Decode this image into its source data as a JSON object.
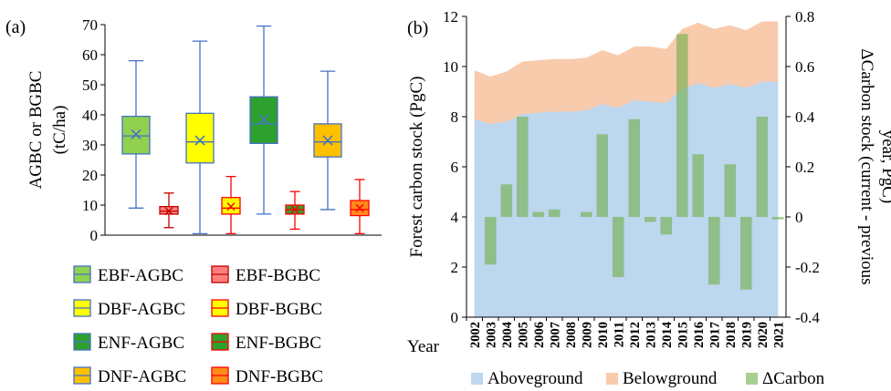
{
  "chart_data": [
    {
      "type": "box",
      "panel_label": "(a)",
      "ylabel": [
        "AGBC or BGBC",
        "(tC/ha)"
      ],
      "ylim": [
        0,
        70
      ],
      "yticks": [
        0,
        10,
        20,
        30,
        40,
        50,
        60,
        70
      ],
      "grid": false,
      "legend_position": "bottom",
      "series": [
        {
          "name": "EBF-AGBC",
          "min": 9,
          "q1": 27,
          "median": 33,
          "mean": 33.5,
          "q3": 39.5,
          "max": 58,
          "fill": "#92D050",
          "stroke": "#4472C4"
        },
        {
          "name": "EBF-BGBC",
          "min": 2.5,
          "q1": 7,
          "median": 8,
          "mean": 8,
          "q3": 9.5,
          "max": 14,
          "fill": "#FF7F7F",
          "stroke": "#C00000"
        },
        {
          "name": "DBF-AGBC",
          "min": 0.5,
          "q1": 24,
          "median": 31,
          "mean": 31.5,
          "q3": 40.5,
          "max": 64.5,
          "fill": "#FFFF00",
          "stroke": "#4472C4"
        },
        {
          "name": "DBF-BGBC",
          "min": 0.5,
          "q1": 7,
          "median": 9,
          "mean": 9.5,
          "q3": 12.5,
          "max": 19.5,
          "fill": "#FFFF00",
          "stroke": "#FF0000"
        },
        {
          "name": "ENF-AGBC",
          "min": 7,
          "q1": 30.5,
          "median": 37,
          "mean": 38.5,
          "q3": 46,
          "max": 69.5,
          "fill": "#2EA02E",
          "stroke": "#4472C4"
        },
        {
          "name": "ENF-BGBC",
          "min": 2,
          "q1": 7,
          "median": 8.5,
          "mean": 8.5,
          "q3": 10,
          "max": 14.5,
          "fill": "#2EA02E",
          "stroke": "#FF0000"
        },
        {
          "name": "DNF-AGBC",
          "min": 8.5,
          "q1": 26,
          "median": 31,
          "mean": 31.5,
          "q3": 37,
          "max": 54.5,
          "fill": "#FFC000",
          "stroke": "#4472C4"
        },
        {
          "name": "DNF-BGBC",
          "min": 0.5,
          "q1": 6.5,
          "median": 8.5,
          "mean": 9,
          "q3": 11.5,
          "max": 18.5,
          "fill": "#FF8C1A",
          "stroke": "#FF0000"
        }
      ],
      "whisker_color": "#4472C4",
      "mean_marker": "x"
    },
    {
      "type": "area+bar",
      "panel_label": "(b)",
      "xlabel": "Year",
      "ylabel": "Forest carbon stock (PgC)",
      "y2label": [
        "ΔCarbon stock (current - previous",
        "year, PgC)"
      ],
      "ylim": [
        0,
        12
      ],
      "yticks": [
        0,
        2,
        4,
        6,
        8,
        10,
        12
      ],
      "y2lim": [
        -0.4,
        0.8
      ],
      "y2ticks": [
        "-0.4",
        "-0.2",
        "0",
        "0.2",
        "0.4",
        "0.6",
        "0.8"
      ],
      "grid": false,
      "legend_position": "bottom",
      "x": [
        "2002",
        "2003",
        "2004",
        "2005",
        "2006",
        "2007",
        "2008",
        "2009",
        "2010",
        "2011",
        "2012",
        "2013",
        "2014",
        "2015",
        "2016",
        "2017",
        "2018",
        "2019",
        "2020",
        "2021"
      ],
      "series": [
        {
          "name": "Aboveground",
          "type": "area",
          "axis": "left",
          "color": "#BDD7EE",
          "values": [
            7.9,
            7.7,
            7.8,
            8.1,
            8.15,
            8.2,
            8.2,
            8.25,
            8.5,
            8.35,
            8.65,
            8.6,
            8.55,
            9.1,
            9.35,
            9.15,
            9.3,
            9.15,
            9.4,
            9.4
          ]
        },
        {
          "name": "Belowground",
          "type": "stacked-area",
          "axis": "left",
          "color": "#F8CBAD",
          "values": [
            9.85,
            9.6,
            9.8,
            10.2,
            10.25,
            10.3,
            10.3,
            10.35,
            10.65,
            10.45,
            10.8,
            10.8,
            10.7,
            11.5,
            11.75,
            11.5,
            11.65,
            11.45,
            11.8,
            11.8
          ]
        },
        {
          "name": "ΔCarbon",
          "type": "bar",
          "axis": "right",
          "color": "#70AD47",
          "values": [
            0,
            -0.19,
            0.13,
            0.4,
            0.02,
            0.03,
            0,
            0.02,
            0.33,
            -0.24,
            0.39,
            -0.02,
            -0.07,
            0.73,
            0.25,
            -0.27,
            0.21,
            -0.29,
            0.4,
            -0.01
          ]
        }
      ]
    }
  ],
  "colors": {
    "axis": "#000000",
    "box_outline_agbc": "#4472C4",
    "mean_marker": "#4472C4"
  }
}
